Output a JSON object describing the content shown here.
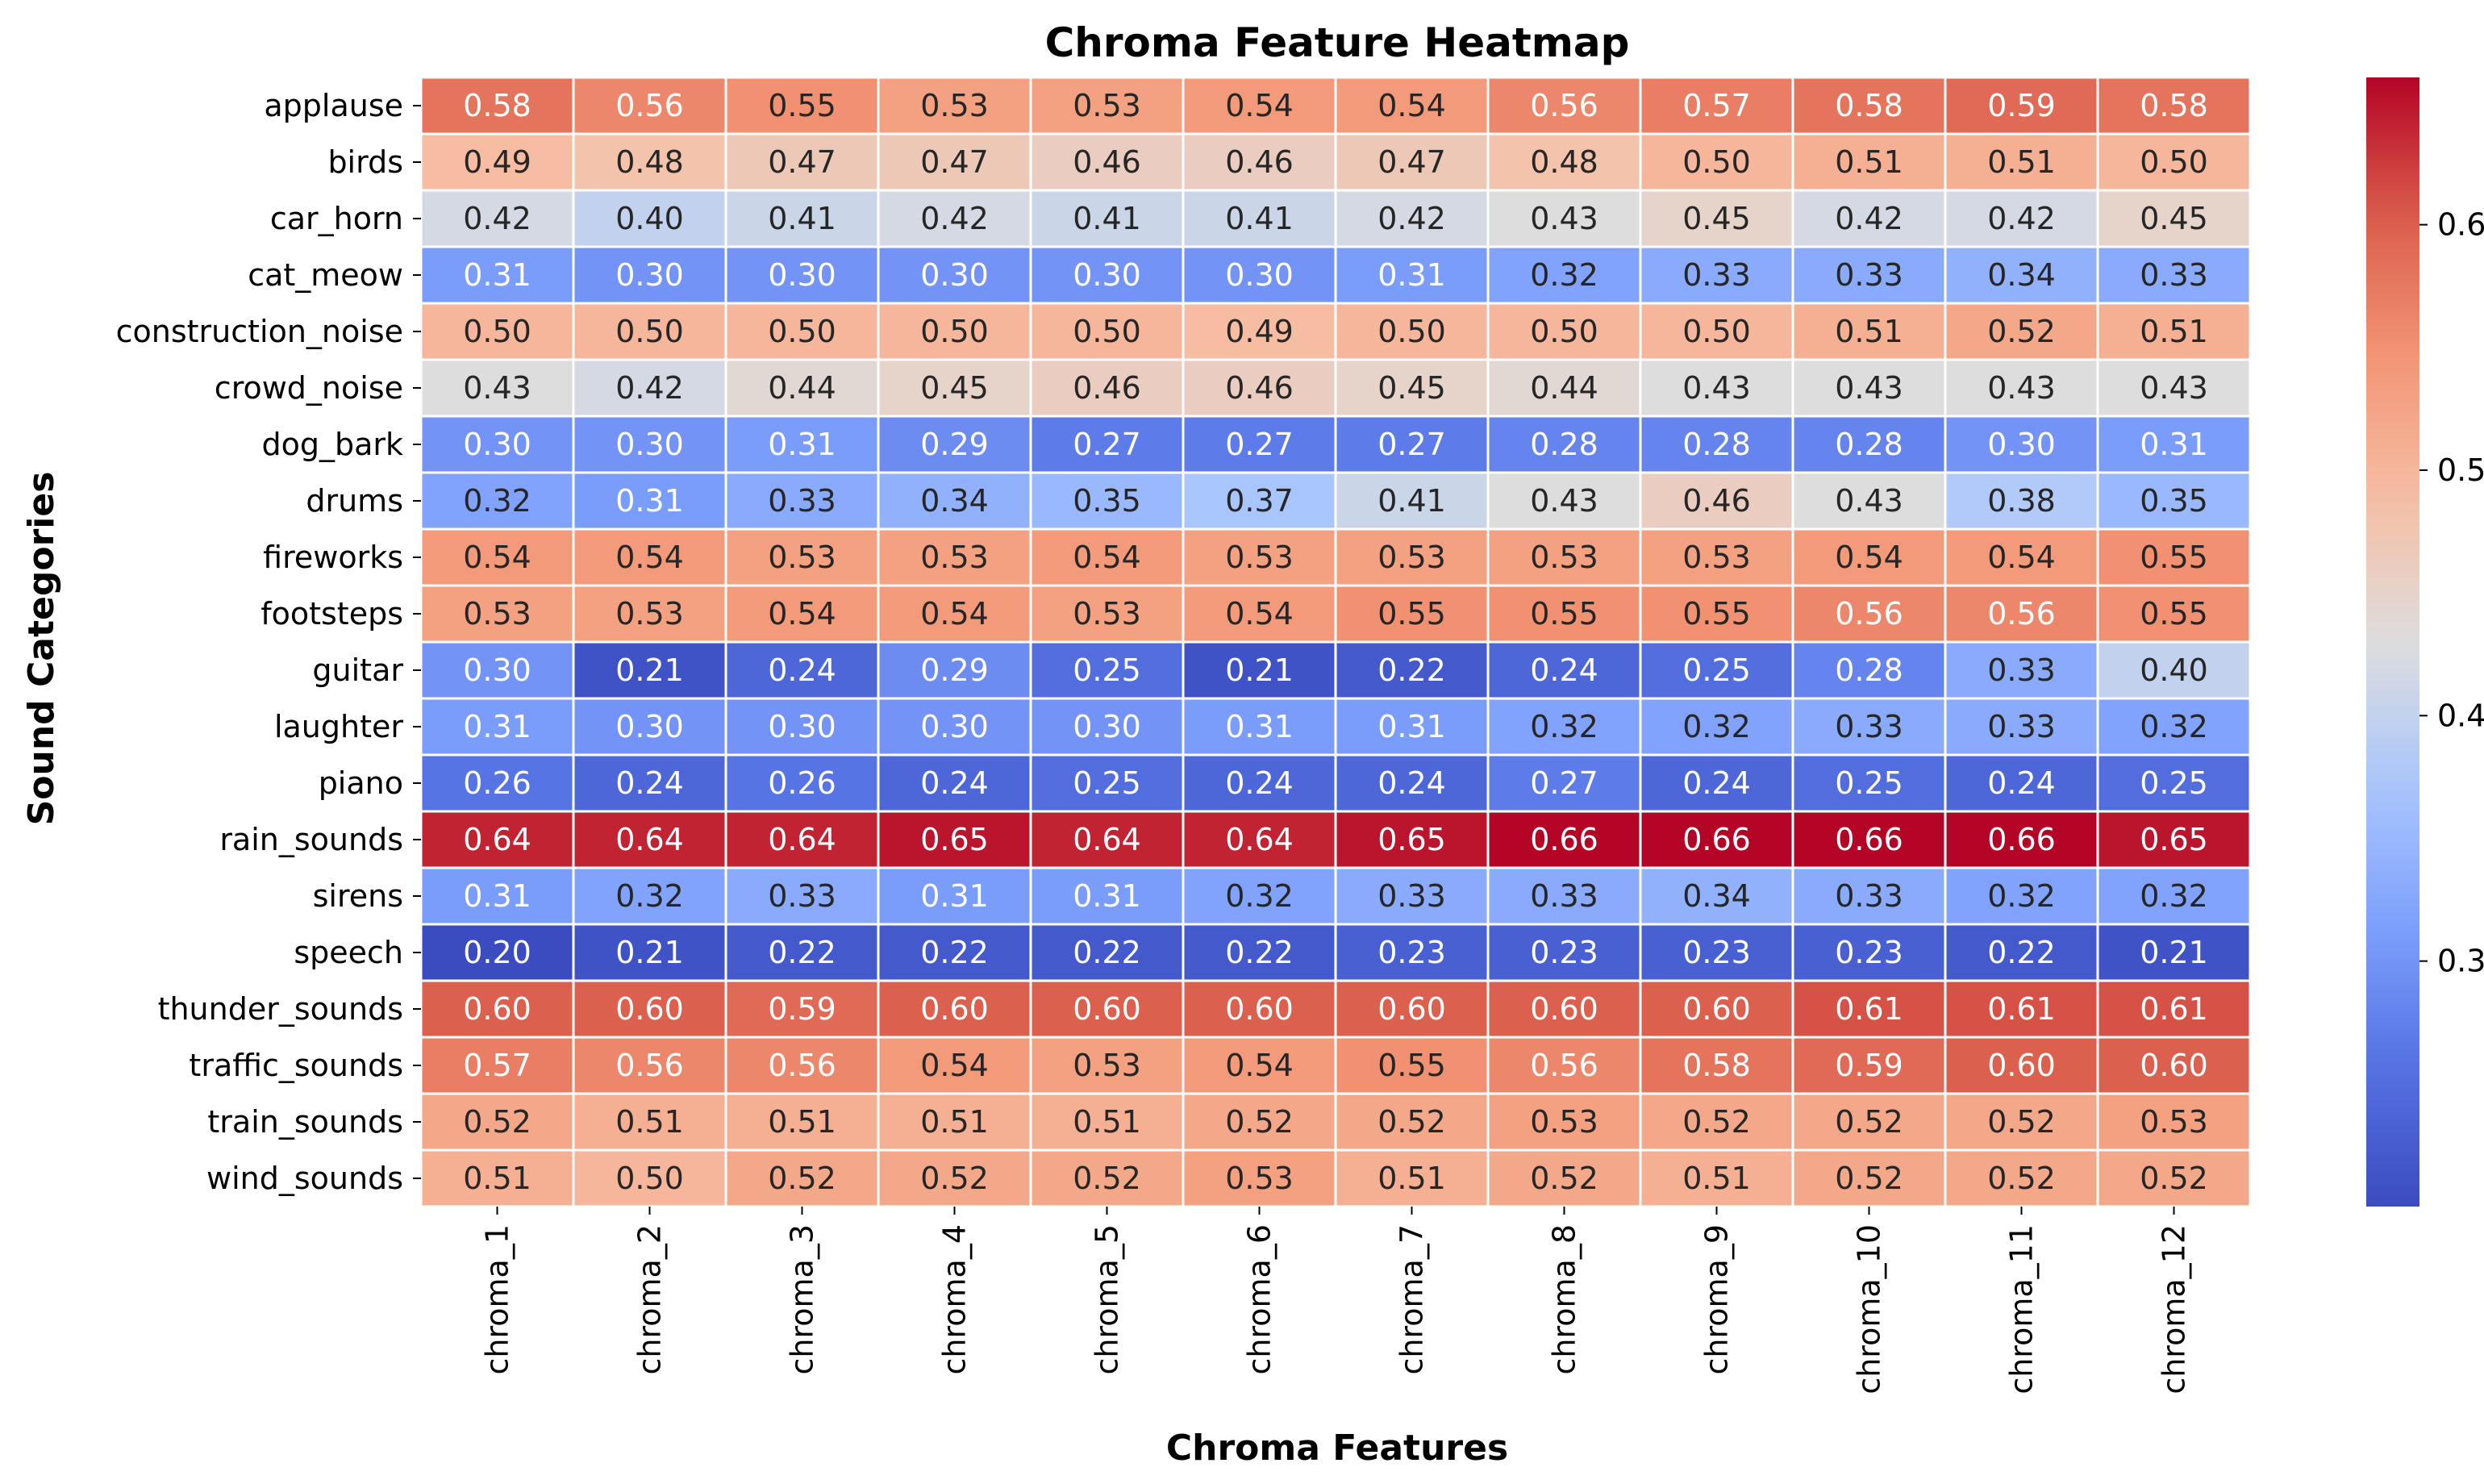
{
  "chart_data": {
    "type": "heatmap",
    "title": "Chroma Feature Heatmap",
    "xlabel": "Chroma Features",
    "ylabel": "Sound Categories",
    "colormap": "coolwarm",
    "vmin": 0.2,
    "vmax": 0.66,
    "colorbar_ticks": [
      "0.3",
      "0.4",
      "0.5",
      "0.6"
    ],
    "columns": [
      "chroma_1",
      "chroma_2",
      "chroma_3",
      "chroma_4",
      "chroma_5",
      "chroma_6",
      "chroma_7",
      "chroma_8",
      "chroma_9",
      "chroma_10",
      "chroma_11",
      "chroma_12"
    ],
    "rows": [
      "applause",
      "birds",
      "car_horn",
      "cat_meow",
      "construction_noise",
      "crowd_noise",
      "dog_bark",
      "drums",
      "fireworks",
      "footsteps",
      "guitar",
      "laughter",
      "piano",
      "rain_sounds",
      "sirens",
      "speech",
      "thunder_sounds",
      "traffic_sounds",
      "train_sounds",
      "wind_sounds"
    ],
    "values": [
      [
        0.58,
        0.56,
        0.55,
        0.53,
        0.53,
        0.54,
        0.54,
        0.56,
        0.57,
        0.58,
        0.59,
        0.58
      ],
      [
        0.49,
        0.48,
        0.47,
        0.47,
        0.46,
        0.46,
        0.47,
        0.48,
        0.5,
        0.51,
        0.51,
        0.5
      ],
      [
        0.42,
        0.4,
        0.41,
        0.42,
        0.41,
        0.41,
        0.42,
        0.43,
        0.45,
        0.42,
        0.42,
        0.45
      ],
      [
        0.31,
        0.3,
        0.3,
        0.3,
        0.3,
        0.3,
        0.31,
        0.32,
        0.33,
        0.33,
        0.34,
        0.33
      ],
      [
        0.5,
        0.5,
        0.5,
        0.5,
        0.5,
        0.49,
        0.5,
        0.5,
        0.5,
        0.51,
        0.52,
        0.51
      ],
      [
        0.43,
        0.42,
        0.44,
        0.45,
        0.46,
        0.46,
        0.45,
        0.44,
        0.43,
        0.43,
        0.43,
        0.43
      ],
      [
        0.3,
        0.3,
        0.31,
        0.29,
        0.27,
        0.27,
        0.27,
        0.28,
        0.28,
        0.28,
        0.3,
        0.31
      ],
      [
        0.32,
        0.31,
        0.33,
        0.34,
        0.35,
        0.37,
        0.41,
        0.43,
        0.46,
        0.43,
        0.38,
        0.35
      ],
      [
        0.54,
        0.54,
        0.53,
        0.53,
        0.54,
        0.53,
        0.53,
        0.53,
        0.53,
        0.54,
        0.54,
        0.55
      ],
      [
        0.53,
        0.53,
        0.54,
        0.54,
        0.53,
        0.54,
        0.55,
        0.55,
        0.55,
        0.56,
        0.56,
        0.55
      ],
      [
        0.3,
        0.21,
        0.24,
        0.29,
        0.25,
        0.21,
        0.22,
        0.24,
        0.25,
        0.28,
        0.33,
        0.4
      ],
      [
        0.31,
        0.3,
        0.3,
        0.3,
        0.3,
        0.31,
        0.31,
        0.32,
        0.32,
        0.33,
        0.33,
        0.32
      ],
      [
        0.26,
        0.24,
        0.26,
        0.24,
        0.25,
        0.24,
        0.24,
        0.27,
        0.24,
        0.25,
        0.24,
        0.25
      ],
      [
        0.64,
        0.64,
        0.64,
        0.65,
        0.64,
        0.64,
        0.65,
        0.66,
        0.66,
        0.66,
        0.66,
        0.65
      ],
      [
        0.31,
        0.32,
        0.33,
        0.31,
        0.31,
        0.32,
        0.33,
        0.33,
        0.34,
        0.33,
        0.32,
        0.32
      ],
      [
        0.2,
        0.21,
        0.22,
        0.22,
        0.22,
        0.22,
        0.23,
        0.23,
        0.23,
        0.23,
        0.22,
        0.21
      ],
      [
        0.6,
        0.6,
        0.59,
        0.6,
        0.6,
        0.6,
        0.6,
        0.6,
        0.6,
        0.61,
        0.61,
        0.61
      ],
      [
        0.57,
        0.56,
        0.56,
        0.54,
        0.53,
        0.54,
        0.55,
        0.56,
        0.58,
        0.59,
        0.6,
        0.6
      ],
      [
        0.52,
        0.51,
        0.51,
        0.51,
        0.51,
        0.52,
        0.52,
        0.53,
        0.52,
        0.52,
        0.52,
        0.53
      ],
      [
        0.51,
        0.5,
        0.52,
        0.52,
        0.52,
        0.53,
        0.51,
        0.52,
        0.51,
        0.52,
        0.52,
        0.52
      ]
    ]
  }
}
